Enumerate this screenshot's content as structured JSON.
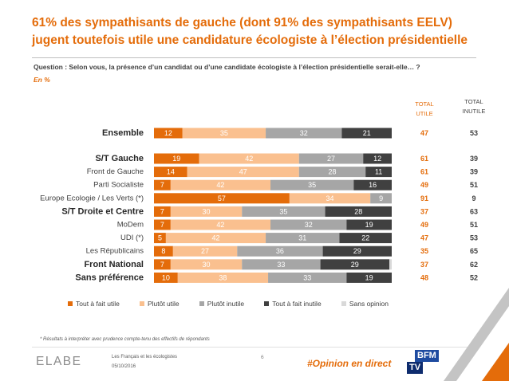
{
  "title": {
    "line1": "61% des sympathisants de gauche (dont 91% des sympathisants EELV)",
    "line2": "jugent toutefois utile une candidature écologiste à l’élection présidentielle"
  },
  "question": "Question : Selon vous, la présence d’un candidat ou d’une candidate écologiste à l’élection présidentielle serait-elle… ?",
  "unit_note": "En %",
  "colors": {
    "accent": "#E46C0A",
    "text_dark": "#404040"
  },
  "chart_data": {
    "type": "bar",
    "orientation": "horizontal",
    "stacked": true,
    "xlim": [
      0,
      100
    ],
    "grid": false,
    "legend_position": "bottom",
    "categories": [
      "Ensemble",
      "S/T Gauche",
      "Front de Gauche",
      "Parti Socialiste",
      "Europe Ecologie / Les Verts (*)",
      "S/T Droite et Centre",
      "MoDem",
      "UDI (*)",
      "Les Républicains",
      "Front National",
      "Sans préférence"
    ],
    "emphasized_categories": [
      "Ensemble",
      "S/T Gauche",
      "S/T Droite et Centre",
      "Front National",
      "Sans préférence"
    ],
    "series": [
      {
        "name": "Tout à fait utile",
        "color": "#E46C0A",
        "values": [
          12,
          19,
          14,
          7,
          57,
          7,
          7,
          5,
          8,
          7,
          10
        ]
      },
      {
        "name": "Plutôt utile",
        "color": "#FAC08F",
        "values": [
          35,
          42,
          47,
          42,
          34,
          30,
          42,
          42,
          27,
          30,
          38
        ]
      },
      {
        "name": "Plutôt inutile",
        "color": "#A6A6A6",
        "values": [
          32,
          27,
          28,
          35,
          9,
          35,
          32,
          31,
          36,
          33,
          33
        ]
      },
      {
        "name": "Tout à fait inutile",
        "color": "#404040",
        "values": [
          21,
          12,
          11,
          16,
          0,
          28,
          19,
          22,
          29,
          29,
          19
        ]
      },
      {
        "name": "Sans opinion",
        "color": "#D9D9D9",
        "values": [
          0,
          0,
          0,
          0,
          0,
          0,
          0,
          0,
          0,
          1,
          0
        ]
      }
    ],
    "totals": {
      "utile": {
        "header": [
          "TOTAL",
          "UTILE"
        ],
        "values": [
          47,
          61,
          61,
          49,
          91,
          37,
          49,
          47,
          35,
          37,
          48
        ]
      },
      "inutile": {
        "header": [
          "TOTAL",
          "INUTILE"
        ],
        "values": [
          53,
          39,
          39,
          51,
          9,
          63,
          51,
          53,
          65,
          62,
          52
        ]
      }
    }
  },
  "footnote": "* Résultats à interpréter avec prudence compte-tenu des effectifs de répondants",
  "footer": {
    "logo_text": "ELABE",
    "study_title": "Les Français et les écologistes",
    "date": "05/10/2016",
    "page_number": "6",
    "hashtag": "#Opinion en direct",
    "partner_logo": {
      "line1": "BFM",
      "line2": "TV"
    }
  }
}
